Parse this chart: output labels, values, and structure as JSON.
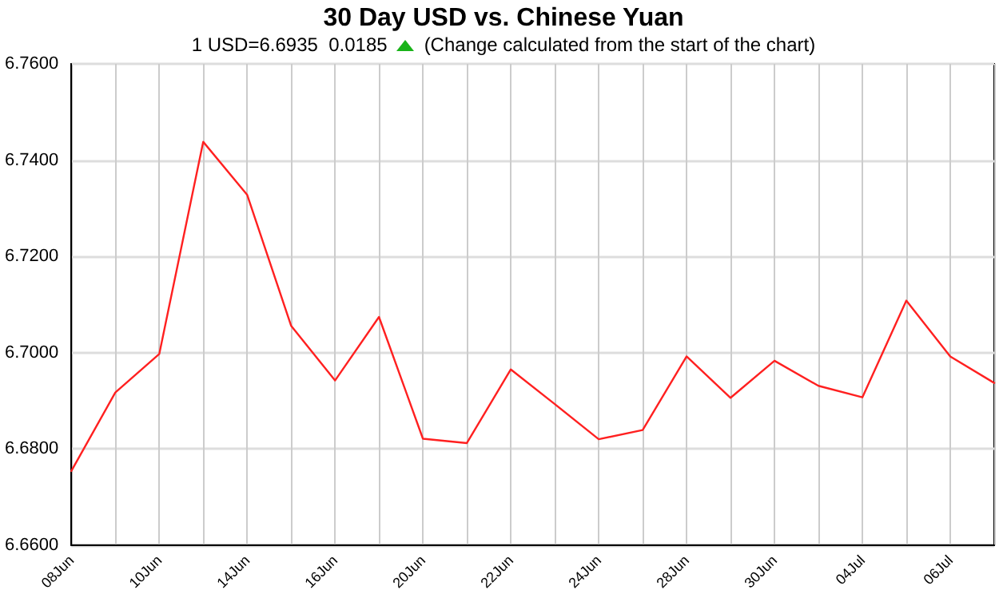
{
  "chart_data": {
    "type": "line",
    "title": "30 Day USD vs. Chinese Yuan",
    "subtitle": "1 USD=6.6935  0.0185",
    "annotations": [
      "(Change calculated from the start of the chart)"
    ],
    "categories": [
      "08Jun",
      null,
      "10Jun",
      null,
      "14Jun",
      null,
      "16Jun",
      null,
      "20Jun",
      null,
      "22Jun",
      null,
      "24Jun",
      null,
      "28Jun",
      null,
      "30Jun",
      null,
      "04Jul",
      null,
      "06Jul",
      null
    ],
    "series": [
      {
        "color": "#ff2020",
        "values": [
          6.6754,
          6.6917,
          6.6997,
          6.7438,
          6.7328,
          6.7056,
          6.6942,
          6.7074,
          6.6821,
          6.6812,
          6.6965,
          6.6893,
          6.682,
          6.6839,
          6.6992,
          6.6906,
          6.6983,
          6.6931,
          6.6907,
          6.7108,
          6.6992,
          6.6937
        ]
      }
    ],
    "ylim": [
      6.66,
      6.76
    ],
    "yticks": [
      {
        "value": 6.66,
        "label": "6.6600"
      },
      {
        "value": 6.68,
        "label": "6.6800"
      },
      {
        "value": 6.7,
        "label": "6.7000"
      },
      {
        "value": 6.72,
        "label": "6.7200"
      },
      {
        "value": 6.74,
        "label": "6.7400"
      },
      {
        "value": 6.76,
        "label": "6.7600"
      }
    ],
    "grid": true,
    "marker": "none",
    "line_style": "solid"
  }
}
